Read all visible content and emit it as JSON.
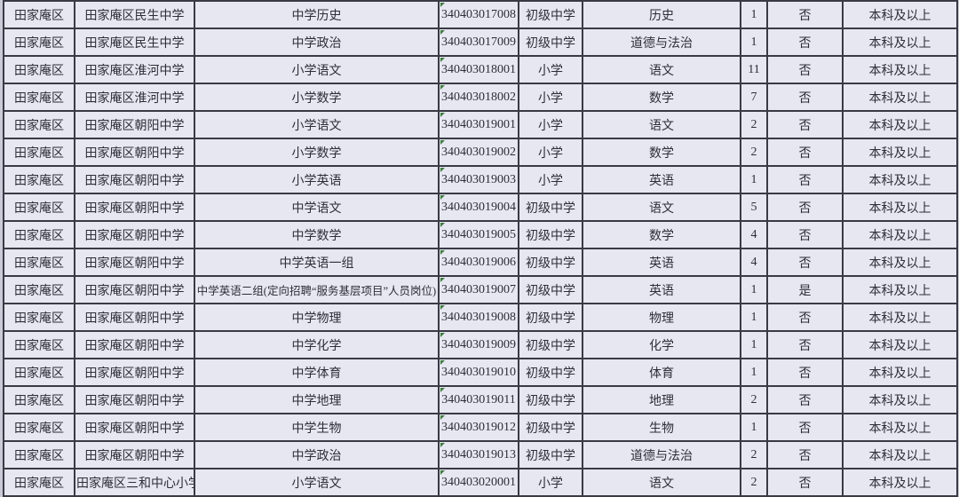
{
  "colors": {
    "page_bg": "#c9cbd6",
    "cell_bg": "#e6e7f1",
    "border": "#3a3a46",
    "text": "#2e2e38",
    "flag_green": "#3e7c3e"
  },
  "table": {
    "column_keys": [
      "district",
      "school",
      "position",
      "code",
      "level",
      "subject",
      "count",
      "targeted",
      "education"
    ],
    "rows": [
      {
        "district": "田家庵区",
        "school": "田家庵区民生中学",
        "position": "中学历史",
        "code": "340403017008",
        "level": "初级中学",
        "subject": "历史",
        "count": "1",
        "targeted": "否",
        "education": "本科及以上"
      },
      {
        "district": "田家庵区",
        "school": "田家庵区民生中学",
        "position": "中学政治",
        "code": "340403017009",
        "level": "初级中学",
        "subject": "道德与法治",
        "count": "1",
        "targeted": "否",
        "education": "本科及以上"
      },
      {
        "district": "田家庵区",
        "school": "田家庵区淮河中学",
        "position": "小学语文",
        "code": "340403018001",
        "level": "小学",
        "subject": "语文",
        "count": "11",
        "targeted": "否",
        "education": "本科及以上"
      },
      {
        "district": "田家庵区",
        "school": "田家庵区淮河中学",
        "position": "小学数学",
        "code": "340403018002",
        "level": "小学",
        "subject": "数学",
        "count": "7",
        "targeted": "否",
        "education": "本科及以上"
      },
      {
        "district": "田家庵区",
        "school": "田家庵区朝阳中学",
        "position": "小学语文",
        "code": "340403019001",
        "level": "小学",
        "subject": "语文",
        "count": "2",
        "targeted": "否",
        "education": "本科及以上"
      },
      {
        "district": "田家庵区",
        "school": "田家庵区朝阳中学",
        "position": "小学数学",
        "code": "340403019002",
        "level": "小学",
        "subject": "数学",
        "count": "2",
        "targeted": "否",
        "education": "本科及以上"
      },
      {
        "district": "田家庵区",
        "school": "田家庵区朝阳中学",
        "position": "小学英语",
        "code": "340403019003",
        "level": "小学",
        "subject": "英语",
        "count": "1",
        "targeted": "否",
        "education": "本科及以上"
      },
      {
        "district": "田家庵区",
        "school": "田家庵区朝阳中学",
        "position": "中学语文",
        "code": "340403019004",
        "level": "初级中学",
        "subject": "语文",
        "count": "5",
        "targeted": "否",
        "education": "本科及以上"
      },
      {
        "district": "田家庵区",
        "school": "田家庵区朝阳中学",
        "position": "中学数学",
        "code": "340403019005",
        "level": "初级中学",
        "subject": "数学",
        "count": "4",
        "targeted": "否",
        "education": "本科及以上"
      },
      {
        "district": "田家庵区",
        "school": "田家庵区朝阳中学",
        "position": "中学英语一组",
        "code": "340403019006",
        "level": "初级中学",
        "subject": "英语",
        "count": "4",
        "targeted": "否",
        "education": "本科及以上"
      },
      {
        "district": "田家庵区",
        "school": "田家庵区朝阳中学",
        "position": "中学英语二组(定向招聘“服务基层项目”人员岗位)",
        "code": "340403019007",
        "level": "初级中学",
        "subject": "英语",
        "count": "1",
        "targeted": "是",
        "education": "本科及以上"
      },
      {
        "district": "田家庵区",
        "school": "田家庵区朝阳中学",
        "position": "中学物理",
        "code": "340403019008",
        "level": "初级中学",
        "subject": "物理",
        "count": "1",
        "targeted": "否",
        "education": "本科及以上"
      },
      {
        "district": "田家庵区",
        "school": "田家庵区朝阳中学",
        "position": "中学化学",
        "code": "340403019009",
        "level": "初级中学",
        "subject": "化学",
        "count": "1",
        "targeted": "否",
        "education": "本科及以上"
      },
      {
        "district": "田家庵区",
        "school": "田家庵区朝阳中学",
        "position": "中学体育",
        "code": "340403019010",
        "level": "初级中学",
        "subject": "体育",
        "count": "1",
        "targeted": "否",
        "education": "本科及以上"
      },
      {
        "district": "田家庵区",
        "school": "田家庵区朝阳中学",
        "position": "中学地理",
        "code": "340403019011",
        "level": "初级中学",
        "subject": "地理",
        "count": "2",
        "targeted": "否",
        "education": "本科及以上"
      },
      {
        "district": "田家庵区",
        "school": "田家庵区朝阳中学",
        "position": "中学生物",
        "code": "340403019012",
        "level": "初级中学",
        "subject": "生物",
        "count": "1",
        "targeted": "否",
        "education": "本科及以上"
      },
      {
        "district": "田家庵区",
        "school": "田家庵区朝阳中学",
        "position": "中学政治",
        "code": "340403019013",
        "level": "初级中学",
        "subject": "道德与法治",
        "count": "2",
        "targeted": "否",
        "education": "本科及以上"
      },
      {
        "district": "田家庵区",
        "school": "田家庵区三和中心小学",
        "position": "小学语文",
        "code": "340403020001",
        "level": "小学",
        "subject": "语文",
        "count": "2",
        "targeted": "否",
        "education": "本科及以上"
      }
    ]
  }
}
